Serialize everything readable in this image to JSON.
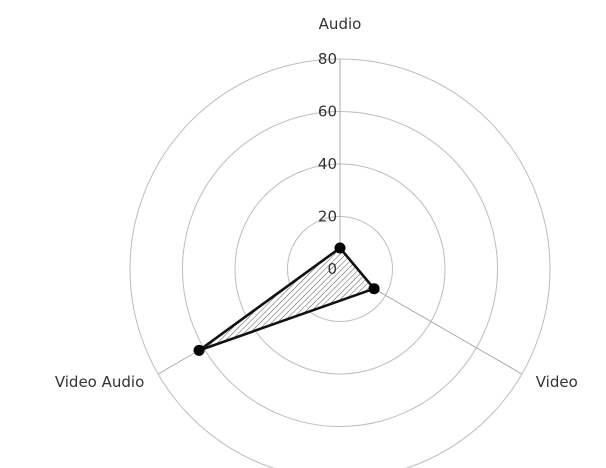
{
  "chart_data": {
    "type": "radar",
    "categories": [
      "Audio",
      "Video",
      "Video Audio"
    ],
    "series": [
      {
        "values": [
          8,
          15,
          62
        ]
      }
    ],
    "rlim": [
      0,
      80
    ],
    "ticks": [
      0,
      20,
      40,
      60,
      80
    ],
    "tick_labels": [
      "0",
      "20",
      "40",
      "60",
      "80"
    ],
    "fill_pattern": "diagonal-hatch",
    "grid": true,
    "legend": "none",
    "colors": {
      "line": "#111111",
      "grid": "#bdbdbd",
      "axis": "#a9a9a9"
    }
  }
}
